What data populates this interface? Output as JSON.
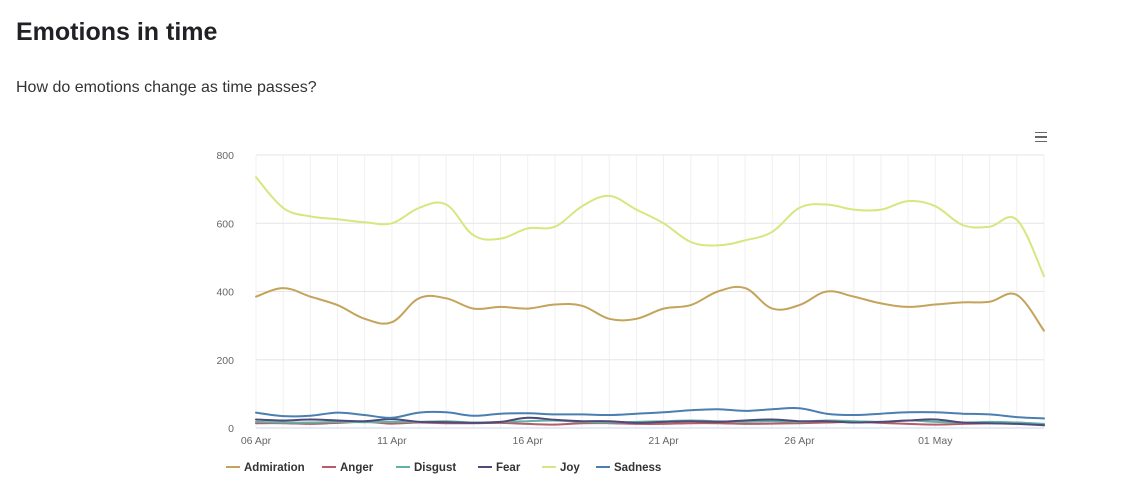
{
  "header": {
    "title": "Emotions in time",
    "subtitle": "How do emotions change as time passes?"
  },
  "chart_data": {
    "type": "line",
    "title": "",
    "xlabel": "",
    "ylabel": "",
    "ylim": [
      0,
      800
    ],
    "yticks": [
      "0",
      "200",
      "400",
      "600",
      "800"
    ],
    "xticks": [
      {
        "label": "06 Apr",
        "day": 0
      },
      {
        "label": "11 Apr",
        "day": 5
      },
      {
        "label": "16 Apr",
        "day": 10
      },
      {
        "label": "21 Apr",
        "day": 15
      },
      {
        "label": "26 Apr",
        "day": 20
      },
      {
        "label": "01 May",
        "day": 25
      }
    ],
    "x": [
      "06 Apr",
      "07 Apr",
      "08 Apr",
      "09 Apr",
      "10 Apr",
      "11 Apr",
      "12 Apr",
      "13 Apr",
      "14 Apr",
      "15 Apr",
      "16 Apr",
      "17 Apr",
      "18 Apr",
      "19 Apr",
      "20 Apr",
      "21 Apr",
      "22 Apr",
      "23 Apr",
      "24 Apr",
      "25 Apr",
      "26 Apr",
      "27 Apr",
      "28 Apr",
      "29 Apr",
      "30 Apr",
      "01 May",
      "02 May",
      "03 May",
      "04 May",
      "05 May"
    ],
    "grid": true,
    "legend_position": "bottom-left",
    "series": [
      {
        "name": "Admiration",
        "color": "#c4a35a",
        "values": [
          385,
          410,
          385,
          360,
          320,
          310,
          380,
          380,
          350,
          355,
          350,
          362,
          358,
          320,
          320,
          350,
          360,
          400,
          410,
          350,
          360,
          400,
          385,
          365,
          355,
          362,
          368,
          370,
          390,
          285
        ]
      },
      {
        "name": "Anger",
        "color": "#b95c6a",
        "values": [
          14,
          14,
          12,
          15,
          18,
          13,
          16,
          14,
          14,
          15,
          12,
          10,
          14,
          14,
          12,
          12,
          14,
          14,
          12,
          13,
          14,
          16,
          18,
          15,
          12,
          10,
          12,
          14,
          16,
          10
        ]
      },
      {
        "name": "Disgust",
        "color": "#5fb3a6",
        "values": [
          18,
          16,
          16,
          18,
          17,
          18,
          18,
          20,
          16,
          18,
          20,
          22,
          18,
          16,
          18,
          20,
          22,
          20,
          18,
          20,
          18,
          22,
          20,
          18,
          22,
          18,
          16,
          18,
          16,
          12
        ]
      },
      {
        "name": "Fear",
        "color": "#4f4a7a",
        "values": [
          25,
          22,
          25,
          22,
          20,
          26,
          18,
          17,
          15,
          18,
          30,
          24,
          20,
          20,
          15,
          18,
          20,
          18,
          22,
          25,
          20,
          20,
          16,
          18,
          22,
          25,
          16,
          14,
          12,
          8
        ]
      },
      {
        "name": "Joy",
        "color": "#d9e57f",
        "values": [
          735,
          645,
          620,
          612,
          603,
          600,
          645,
          655,
          565,
          555,
          585,
          590,
          650,
          680,
          640,
          600,
          545,
          535,
          550,
          575,
          645,
          655,
          640,
          640,
          665,
          650,
          595,
          590,
          610,
          445
        ]
      },
      {
        "name": "Sadness",
        "color": "#4a7fb0",
        "values": [
          45,
          35,
          36,
          45,
          38,
          30,
          45,
          46,
          36,
          42,
          43,
          40,
          40,
          38,
          42,
          46,
          52,
          55,
          50,
          55,
          58,
          42,
          38,
          42,
          46,
          46,
          42,
          40,
          32,
          28
        ]
      }
    ]
  }
}
